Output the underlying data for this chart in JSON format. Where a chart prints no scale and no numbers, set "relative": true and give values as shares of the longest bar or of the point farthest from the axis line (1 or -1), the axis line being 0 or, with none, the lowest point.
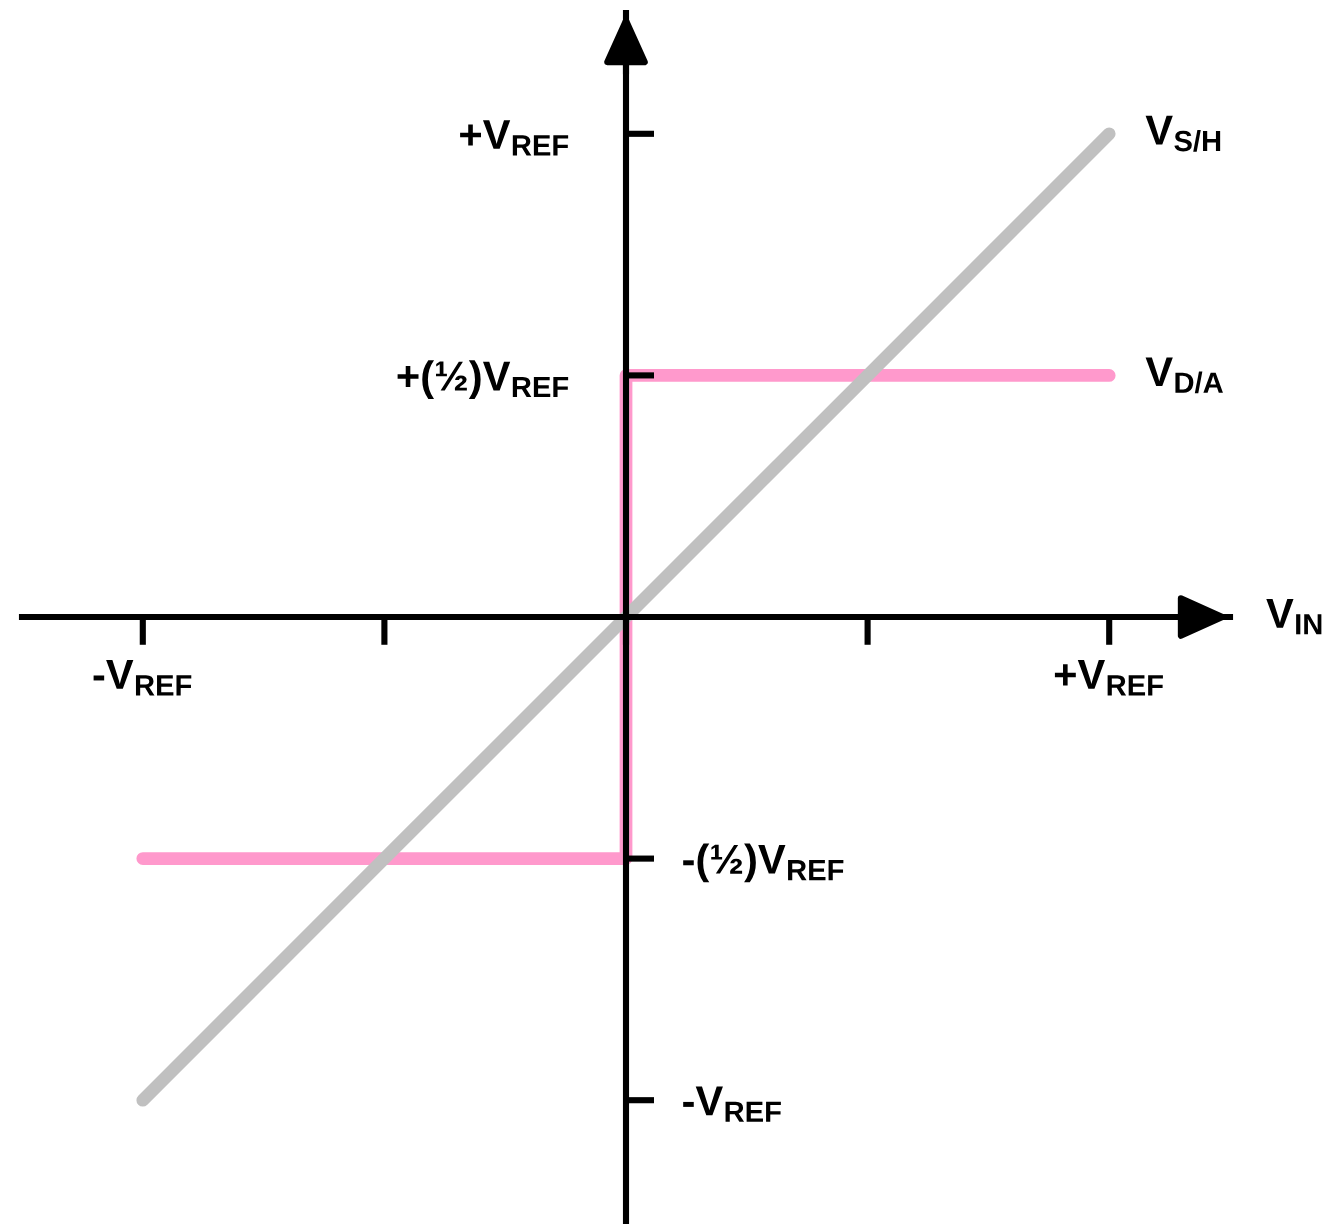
{
  "chart_data": {
    "type": "line",
    "xlabel": "V$_{IN}$",
    "relative": true,
    "categories": [
      "-V$_{REF}$",
      null,
      null,
      null,
      "+V$_{REF}$"
    ],
    "ref_lines": [
      {
        "axis": "y",
        "value": 1,
        "label": "+V$_{REF}$",
        "color": "#000000"
      },
      {
        "axis": "y",
        "value": 0.5,
        "label": "+(½)V$_{REF}$",
        "color": "#000000"
      },
      {
        "axis": "y",
        "value": -0.5,
        "label": "-(½)V$_{REF}$",
        "color": "#000000"
      },
      {
        "axis": "y",
        "value": -1,
        "label": "-V$_{REF}$",
        "color": "#000000"
      }
    ],
    "series": [
      {
        "name": "V$_{D/A}$",
        "type": "step",
        "color": "#ff99cc",
        "values": [
          -0.5,
          -0.5,
          0.5,
          0.5,
          0.5
        ]
      },
      {
        "name": "V$_{S/H}$",
        "color": "#c0c0c0",
        "values": [
          -1,
          -0.5,
          0,
          0.5,
          1
        ]
      }
    ],
    "marker": "none",
    "line_style": "solid"
  }
}
